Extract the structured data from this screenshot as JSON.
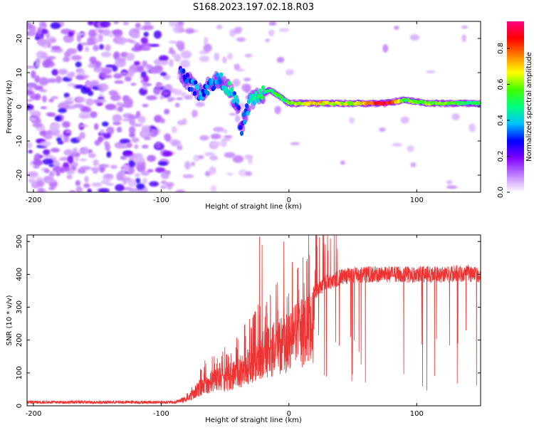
{
  "title": "S168.2023.197.02.18.R03",
  "chart_data": [
    {
      "type": "heatmap",
      "title": "S168.2023.197.02.18.R03",
      "xlabel": "Height of straight line (km)",
      "ylabel": "Frequency (Hz)",
      "xlim": [
        -205,
        150
      ],
      "ylim": [
        -25,
        25
      ],
      "x_ticks": [
        -200,
        -100,
        0,
        100
      ],
      "y_ticks": [
        20,
        10,
        0,
        -10,
        -20
      ],
      "colorbar": {
        "label": "Normalized spectral amplitude",
        "range": [
          0,
          0.95
        ],
        "ticks": [
          0.0,
          0.2,
          0.4,
          0.6,
          0.8
        ],
        "colors": [
          "#ffffff",
          "#c080ff",
          "#8000ff",
          "#0000ff",
          "#00c0ff",
          "#00ff80",
          "#40ff00",
          "#ffff00",
          "#ff8000",
          "#ff0000",
          "#ff0080"
        ]
      },
      "ridge": [
        {
          "x": -85,
          "y": 10,
          "amp": 0.3
        },
        {
          "x": -70,
          "y": 4,
          "amp": 0.35
        },
        {
          "x": -55,
          "y": 8,
          "amp": 0.35
        },
        {
          "x": -48,
          "y": 6,
          "amp": 0.45
        },
        {
          "x": -40,
          "y": 0,
          "amp": 0.35
        },
        {
          "x": -38,
          "y": -7,
          "amp": 0.25
        },
        {
          "x": -30,
          "y": 2,
          "amp": 0.4
        },
        {
          "x": -15,
          "y": 5,
          "amp": 0.5
        },
        {
          "x": 0,
          "y": 1,
          "amp": 0.55
        },
        {
          "x": 20,
          "y": 1,
          "amp": 0.7
        },
        {
          "x": 50,
          "y": 1,
          "amp": 0.6
        },
        {
          "x": 75,
          "y": 1,
          "amp": 0.9
        },
        {
          "x": 90,
          "y": 2,
          "amp": 0.55
        },
        {
          "x": 110,
          "y": 1,
          "amp": 0.6
        },
        {
          "x": 150,
          "y": 1,
          "amp": 0.5
        }
      ]
    },
    {
      "type": "line",
      "xlabel": "Height of straight line (km)",
      "ylabel": "SNR (10 * v/v)",
      "xlim": [
        -205,
        150
      ],
      "ylim": [
        0,
        520
      ],
      "x_ticks": [
        -200,
        -100,
        0,
        100
      ],
      "y_ticks": [
        0,
        100,
        200,
        300,
        400,
        500
      ],
      "color": "#ee3333",
      "series": [
        {
          "x": [
            -205,
            -180,
            -150,
            -120,
            -100,
            -90,
            -80,
            -70,
            -60,
            -50,
            -40,
            -30,
            -20,
            -10,
            0,
            10,
            20,
            30,
            40,
            50,
            60,
            80,
            100,
            120,
            140,
            150
          ],
          "y": [
            12,
            10,
            10,
            10,
            12,
            15,
            30,
            80,
            110,
            120,
            150,
            180,
            230,
            260,
            290,
            330,
            370,
            400,
            415,
            425,
            425,
            425,
            425,
            425,
            430,
            420
          ]
        }
      ],
      "spikes": [
        {
          "x": -23,
          "y": 515
        },
        {
          "x": -21,
          "y": 490
        },
        {
          "x": -4,
          "y": 500
        }
      ]
    }
  ]
}
